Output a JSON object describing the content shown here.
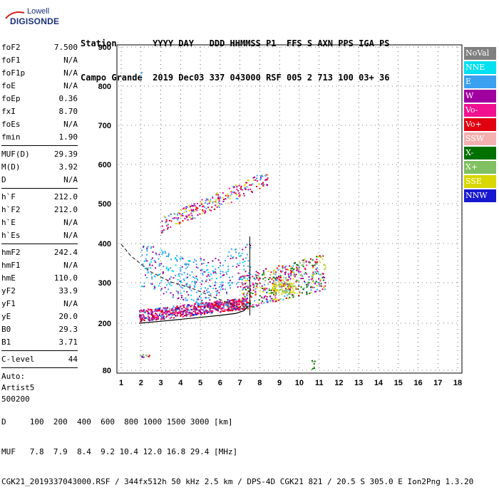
{
  "logo": {
    "line1": "Lowell",
    "line2": "DIGISONDE"
  },
  "header": {
    "line1": "Station       YYYY DAY   DDD HHMMSS P1  FFS S AXN PPS IGA PS",
    "line2": "Campo Grande  2019 Dec03 337 043000 RSF 005 2 713 100 03+ 36"
  },
  "params": {
    "group1": [
      {
        "k": "foF2",
        "v": "7.500"
      },
      {
        "k": "foF1",
        "v": "N/A"
      },
      {
        "k": "foF1p",
        "v": "N/A"
      },
      {
        "k": "foE",
        "v": "N/A"
      },
      {
        "k": "foEp",
        "v": "0.36"
      },
      {
        "k": "fxI",
        "v": "8.70"
      },
      {
        "k": "foEs",
        "v": "N/A"
      },
      {
        "k": "fmin",
        "v": "1.90"
      }
    ],
    "group2": [
      {
        "k": "MUF(D)",
        "v": "29.39"
      },
      {
        "k": "M(D)",
        "v": "3.92"
      },
      {
        "k": "D",
        "v": "N/A"
      }
    ],
    "group3": [
      {
        "k": "h`F",
        "v": "212.0"
      },
      {
        "k": "h`F2",
        "v": "212.0"
      },
      {
        "k": "h`E",
        "v": "N/A"
      },
      {
        "k": "h`Es",
        "v": "N/A"
      }
    ],
    "group4": [
      {
        "k": "hmF2",
        "v": "242.4"
      },
      {
        "k": "hmF1",
        "v": "N/A"
      },
      {
        "k": "hmE",
        "v": "110.0"
      },
      {
        "k": "yF2",
        "v": "33.9"
      },
      {
        "k": "yF1",
        "v": "N/A"
      },
      {
        "k": "yE",
        "v": "20.0"
      },
      {
        "k": "B0",
        "v": "29.3"
      },
      {
        "k": "B1",
        "v": "3.71"
      }
    ],
    "group5": [
      {
        "k": "C-level",
        "v": "44"
      }
    ]
  },
  "auto": {
    "line1": "Auto:",
    "line2": "Artist5",
    "line3": "500200"
  },
  "legend": [
    {
      "label": "NoVal",
      "bg": "#808080",
      "fg": "#ffffff"
    },
    {
      "label": "NNE",
      "bg": "#00e0f0",
      "fg": "#ffffff"
    },
    {
      "label": "E",
      "bg": "#3aa0f0",
      "fg": "#ffffff"
    },
    {
      "label": "W",
      "bg": "#a000a0",
      "fg": "#ffffff"
    },
    {
      "label": "Vo-",
      "bg": "#f01090",
      "fg": "#ffffff"
    },
    {
      "label": "Vo+",
      "bg": "#e00010",
      "fg": "#ffffff"
    },
    {
      "label": "SSW",
      "bg": "#f4b0b0",
      "fg": "#ffffff"
    },
    {
      "label": "X-",
      "bg": "#007000",
      "fg": "#ffffff"
    },
    {
      "label": "X+",
      "bg": "#80c060",
      "fg": "#ffffff"
    },
    {
      "label": "SSE",
      "bg": "#d8d800",
      "fg": "#ffffff"
    },
    {
      "label": "NNW",
      "bg": "#1818d0",
      "fg": "#ffffff"
    }
  ],
  "axes": {
    "x_ticks": [
      "1",
      "2",
      "3",
      "4",
      "5",
      "6",
      "7",
      "8",
      "9",
      "10",
      "11",
      "12",
      "13",
      "14",
      "15",
      "16",
      "17",
      "18"
    ],
    "y_ticks": [
      "80",
      "200",
      "300",
      "400",
      "500",
      "600",
      "700",
      "800",
      "900"
    ]
  },
  "footer": {
    "line1": "D     100  200  400  600  800 1000 1500 3000 [km]",
    "line2": "MUF   7.8  7.9  8.4  9.2 10.4 12.0 16.8 29.4 [MHz]",
    "line3": "CGK21_2019337043000.RSF / 344fx512h 50 kHz 2.5 km / DPS-4D CGK21 821 / 20.5 S 305.0 E Ion2Png 1.3.20"
  },
  "chart_data": {
    "type": "scatter",
    "xlim": [
      1,
      18
    ],
    "ylim": [
      80,
      900
    ],
    "profile": [
      [
        1.9,
        200
      ],
      [
        3,
        205
      ],
      [
        4,
        210
      ],
      [
        5,
        215
      ],
      [
        6,
        220
      ],
      [
        6.8,
        225
      ],
      [
        7.2,
        232
      ],
      [
        7.4,
        242
      ]
    ],
    "trace": [
      [
        1,
        400
      ],
      [
        1.5,
        370
      ],
      [
        2.5,
        330
      ],
      [
        3.5,
        305
      ],
      [
        4.5,
        290
      ],
      [
        5.5,
        270
      ],
      [
        6.5,
        250
      ],
      [
        7.2,
        235
      ]
    ],
    "marker_x": 7.5
  }
}
